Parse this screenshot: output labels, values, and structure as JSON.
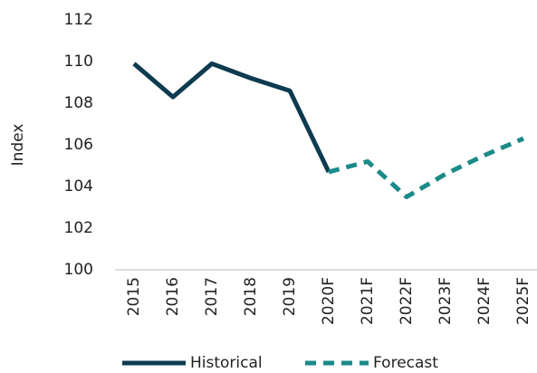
{
  "chart_data": {
    "type": "line",
    "ylabel": "Index",
    "categories": [
      "2015",
      "2016",
      "2017",
      "2018",
      "2019",
      "2020F",
      "2021F",
      "2022F",
      "2023F",
      "2024F",
      "2025F"
    ],
    "series": [
      {
        "name": "Historical",
        "color": "#0d3b4f",
        "dashed": false,
        "values": [
          109.9,
          108.3,
          109.9,
          109.2,
          108.6,
          104.7,
          null,
          null,
          null,
          null,
          null
        ]
      },
      {
        "name": "Forecast",
        "color": "#1a8a8a",
        "dashed": true,
        "values": [
          null,
          null,
          null,
          null,
          null,
          104.7,
          105.2,
          103.5,
          104.6,
          105.5,
          106.3
        ]
      }
    ],
    "ylim": [
      100,
      112
    ],
    "yticks": [
      100,
      102,
      104,
      106,
      108,
      110,
      112
    ],
    "grid": false,
    "legend": "bottom"
  }
}
